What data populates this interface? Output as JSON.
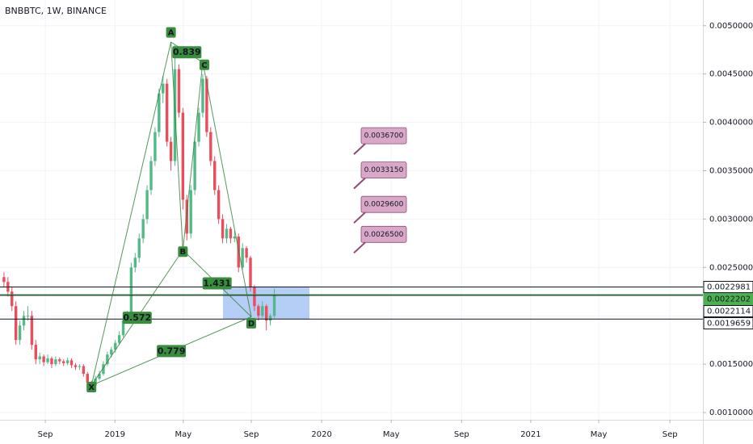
{
  "chart_data": {
    "type": "candlestick",
    "title": "BNBBTC, 1W, BINANCE",
    "up_color": "#53b987",
    "down_color": "#eb4d5c",
    "grid": true,
    "xlim": [
      0,
      176.8
    ],
    "ylim": [
      0.000925,
      0.005265
    ],
    "xticks": [
      {
        "value": 11.4,
        "label": "Sep"
      },
      {
        "value": 28.9,
        "label": "2019"
      },
      {
        "value": 46.1,
        "label": "May"
      },
      {
        "value": 63.2,
        "label": "Sep"
      },
      {
        "value": 80.9,
        "label": "2020"
      },
      {
        "value": 98.4,
        "label": "May"
      },
      {
        "value": 116.1,
        "label": "Sep"
      },
      {
        "value": 133.5,
        "label": "2021"
      },
      {
        "value": 150.6,
        "label": "May"
      },
      {
        "value": 168.5,
        "label": "Sep"
      }
    ],
    "yticks": [
      {
        "value": 0.001,
        "label": "0.0010000"
      },
      {
        "value": 0.0015,
        "label": "0.0015000"
      },
      {
        "value": 0.002,
        "label": "0.0020000"
      },
      {
        "value": 0.0025,
        "label": "0.0025000"
      },
      {
        "value": 0.003,
        "label": "0.0030000"
      },
      {
        "value": 0.0035,
        "label": "0.0035000"
      },
      {
        "value": 0.004,
        "label": "0.0040000"
      },
      {
        "value": 0.0045,
        "label": "0.0045000"
      },
      {
        "value": 0.005,
        "label": "0.0050000"
      }
    ],
    "x": [
      1,
      2,
      3,
      4,
      5,
      6,
      7,
      8,
      9,
      10,
      11,
      12,
      13,
      14,
      15,
      16,
      17,
      18,
      19,
      20,
      21,
      22,
      23,
      24,
      25,
      26,
      27,
      28,
      29,
      30,
      31,
      32,
      33,
      34,
      35,
      36,
      37,
      38,
      39,
      40,
      41,
      42,
      43,
      44,
      45,
      46,
      47,
      48,
      49,
      50,
      51,
      52,
      53,
      54,
      55,
      56,
      57,
      58,
      59,
      60,
      61,
      62,
      63,
      64,
      65,
      66,
      67,
      68,
      69
    ],
    "open": [
      0.0024,
      0.00235,
      0.00225,
      0.0021,
      0.00175,
      0.0019,
      0.002,
      0.002,
      0.0017,
      0.00155,
      0.00158,
      0.00152,
      0.00156,
      0.0015,
      0.00155,
      0.00153,
      0.00151,
      0.00154,
      0.00149,
      0.00147,
      0.00148,
      0.0014,
      0.00131,
      0.00128,
      0.00135,
      0.0014,
      0.0015,
      0.0016,
      0.00165,
      0.00172,
      0.0018,
      0.00195,
      0.002,
      0.0025,
      0.0026,
      0.0028,
      0.003,
      0.0033,
      0.0036,
      0.0039,
      0.0043,
      0.0044,
      0.0038,
      0.0036,
      0.00455,
      0.0041,
      0.0032,
      0.00285,
      0.0033,
      0.0038,
      0.0041,
      0.00445,
      0.0039,
      0.0036,
      0.0033,
      0.003,
      0.0028,
      0.0029,
      0.0028,
      0.00282,
      0.0025,
      0.0027,
      0.0026,
      0.0023,
      0.0021,
      0.002,
      0.0021,
      0.00195,
      0.002
    ],
    "high": [
      0.00245,
      0.0024,
      0.0023,
      0.00215,
      0.00195,
      0.00205,
      0.0021,
      0.00205,
      0.00175,
      0.00162,
      0.0016,
      0.0016,
      0.00158,
      0.00158,
      0.00157,
      0.00155,
      0.00157,
      0.00156,
      0.00151,
      0.0015,
      0.0015,
      0.00142,
      0.00133,
      0.00138,
      0.00143,
      0.00153,
      0.00163,
      0.00168,
      0.00175,
      0.00184,
      0.00198,
      0.00205,
      0.00255,
      0.00265,
      0.00285,
      0.00305,
      0.00335,
      0.00365,
      0.00395,
      0.00435,
      0.00448,
      0.00445,
      0.00385,
      0.0048,
      0.0046,
      0.00415,
      0.00325,
      0.00335,
      0.00385,
      0.00415,
      0.0045,
      0.00448,
      0.00395,
      0.00365,
      0.00335,
      0.00305,
      0.00295,
      0.00292,
      0.00288,
      0.00285,
      0.00275,
      0.00272,
      0.00262,
      0.00232,
      0.00212,
      0.00215,
      0.00212,
      0.00202,
      0.00228
    ],
    "low": [
      0.0023,
      0.0022,
      0.00205,
      0.0017,
      0.0017,
      0.00185,
      0.00195,
      0.00165,
      0.0015,
      0.0015,
      0.00148,
      0.0015,
      0.00146,
      0.00148,
      0.0015,
      0.00148,
      0.00149,
      0.00146,
      0.00144,
      0.00144,
      0.00137,
      0.00128,
      0.00123,
      0.00126,
      0.00133,
      0.00138,
      0.00148,
      0.00157,
      0.00162,
      0.0017,
      0.00178,
      0.00192,
      0.00198,
      0.00245,
      0.00255,
      0.00275,
      0.00295,
      0.00325,
      0.00355,
      0.00385,
      0.0042,
      0.00375,
      0.0035,
      0.00355,
      0.00405,
      0.0031,
      0.00278,
      0.0028,
      0.00325,
      0.00375,
      0.00405,
      0.00385,
      0.00355,
      0.00325,
      0.00295,
      0.00275,
      0.00275,
      0.00275,
      0.00276,
      0.00245,
      0.00248,
      0.00255,
      0.00225,
      0.00205,
      0.00195,
      0.00198,
      0.00185,
      0.0019,
      0.00198
    ],
    "close": [
      0.00235,
      0.00225,
      0.0021,
      0.00175,
      0.0019,
      0.002,
      0.002,
      0.0017,
      0.00155,
      0.00158,
      0.00152,
      0.00156,
      0.0015,
      0.00155,
      0.00153,
      0.00151,
      0.00154,
      0.00149,
      0.00147,
      0.00148,
      0.0014,
      0.00131,
      0.00128,
      0.00135,
      0.0014,
      0.0015,
      0.0016,
      0.00165,
      0.00172,
      0.0018,
      0.00195,
      0.002,
      0.0025,
      0.0026,
      0.0028,
      0.003,
      0.0033,
      0.0036,
      0.0039,
      0.0043,
      0.0044,
      0.0038,
      0.0036,
      0.00455,
      0.0041,
      0.0032,
      0.00285,
      0.0033,
      0.0038,
      0.0041,
      0.00445,
      0.0039,
      0.0036,
      0.0033,
      0.003,
      0.0028,
      0.0029,
      0.0028,
      0.00282,
      0.0025,
      0.0027,
      0.0026,
      0.0023,
      0.0021,
      0.002,
      0.0021,
      0.00195,
      0.002,
      0.00222
    ],
    "levels": [
      {
        "value": 0.0022981,
        "color": "#131722"
      },
      {
        "value": 0.0022202,
        "color": "#4caf50"
      },
      {
        "value": 0.0022114,
        "color": "#131722"
      },
      {
        "value": 0.0019659,
        "color": "#131722"
      }
    ],
    "zone": {
      "top": 0.0022981,
      "bottom": 0.0019659,
      "color": "#a8c6f5"
    },
    "pattern": {
      "color": "#2e7d32",
      "points": [
        {
          "label": "X",
          "x": 23,
          "y": 0.00128
        },
        {
          "label": "A",
          "x": 43,
          "y": 0.00483
        },
        {
          "label": "B",
          "x": 46,
          "y": 0.00268
        },
        {
          "label": "C",
          "x": 51,
          "y": 0.00462
        },
        {
          "label": "D",
          "x": 63.2,
          "y": 0.00199
        }
      ],
      "ratios": [
        0.572,
        0.839,
        1.431,
        0.779
      ]
    },
    "callouts": {
      "values": [
        0.00367,
        0.003315,
        0.00296,
        0.00265
      ],
      "value_labels": [
        "0.0036700",
        "0.0033150",
        "0.0029600",
        "0.0026500"
      ],
      "color": "#d9a7c7"
    }
  }
}
